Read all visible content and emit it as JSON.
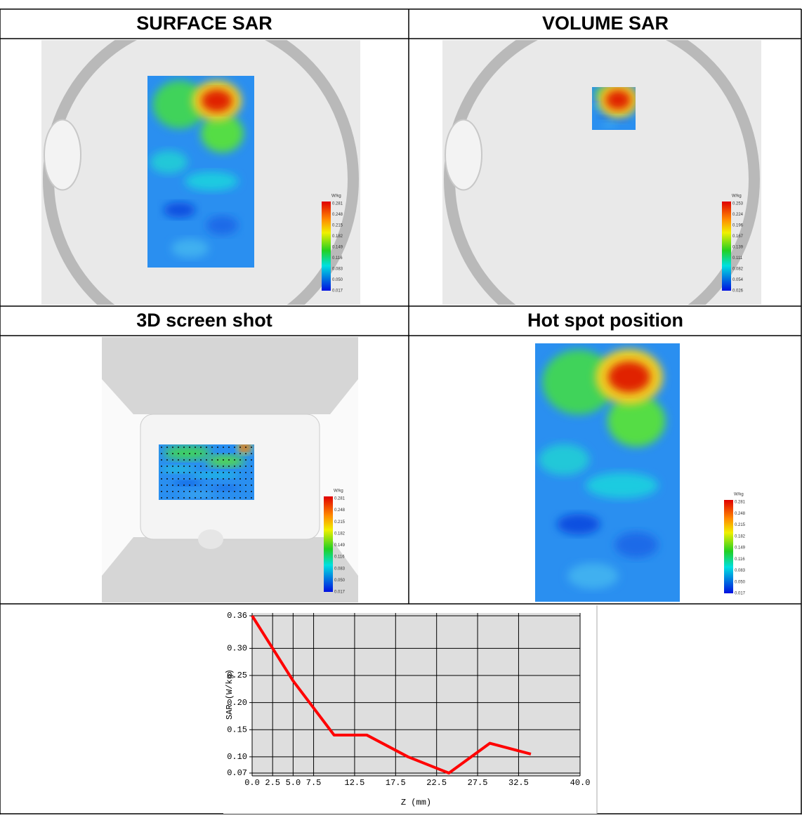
{
  "panels": [
    {
      "title": "SURFACE SAR",
      "colorbar": {
        "unit": "W/kg",
        "labels": [
          "0.281",
          "0.248",
          "0.215",
          "0.182",
          "0.149",
          "0.116",
          "0.083",
          "0.050",
          "0.017"
        ]
      }
    },
    {
      "title": "VOLUME SAR",
      "colorbar": {
        "unit": "W/kg",
        "labels": [
          "0.253",
          "0.224",
          "0.196",
          "0.167",
          "0.139",
          "0.111",
          "0.082",
          "0.054",
          "0.026"
        ]
      }
    },
    {
      "title": "3D screen shot",
      "colorbar": {
        "unit": "W/kg",
        "labels": [
          "0.281",
          "0.248",
          "0.215",
          "0.182",
          "0.149",
          "0.116",
          "0.083",
          "0.050",
          "0.017"
        ]
      }
    },
    {
      "title": "Hot spot position",
      "colorbar": {
        "unit": "W/kg",
        "labels": [
          "0.281",
          "0.248",
          "0.215",
          "0.182",
          "0.149",
          "0.116",
          "0.083",
          "0.050",
          "0.017"
        ]
      }
    }
  ],
  "chart_data": {
    "type": "line",
    "x_label": "Z (mm)",
    "y_label": "SAR (W/kg)",
    "x": [
      0,
      5,
      10,
      14,
      19,
      24,
      29,
      34
    ],
    "values": [
      0.36,
      0.24,
      0.14,
      0.14,
      0.1,
      0.07,
      0.125,
      0.105
    ],
    "color": "#ff0000",
    "xlim": [
      0,
      40
    ],
    "xticks": [
      {
        "value": 0,
        "label": "0.0"
      },
      2.5,
      {
        "value": 5,
        "label": "5.0"
      },
      7.5,
      12.5,
      17.5,
      22.5,
      27.5,
      32.5,
      {
        "value": 40,
        "label": "40.0"
      }
    ],
    "ylim": [
      0.07,
      0.36
    ],
    "yticks": [
      0.36,
      {
        "value": 0.3,
        "label": "0.30"
      },
      0.25,
      {
        "value": 0.2,
        "label": "0.20"
      },
      0.15,
      {
        "value": 0.1,
        "label": "0.10"
      },
      0.07
    ],
    "grid": true
  }
}
